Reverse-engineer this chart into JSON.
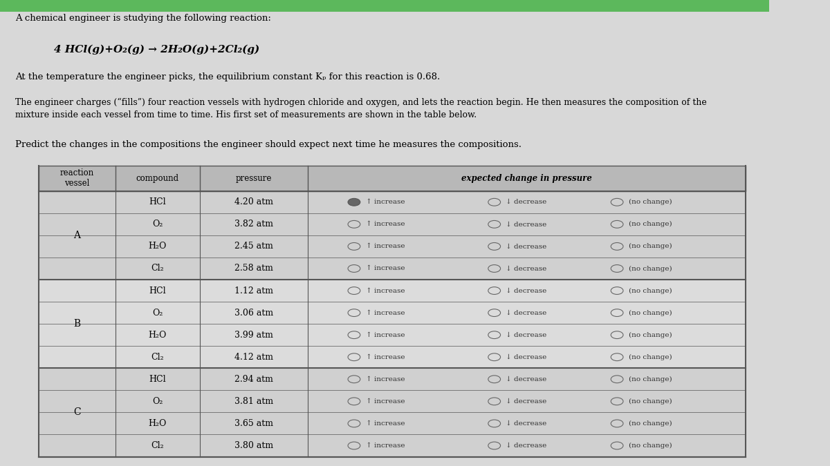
{
  "title_line1": "A chemical engineer is studying the following reaction:",
  "reaction": "4 HCl(g)+O₂(g) → 2H₂O(g)+2Cl₂(g)",
  "eq_line": "At the temperature the engineer picks, the equilibrium constant Kₚ for this reaction is 0.68.",
  "para1": "The engineer charges (“fills”) four reaction vessels with hydrogen chloride and oxygen, and lets the reaction begin. He then measures the composition of the\nmixture inside each vessel from time to time. His first set of measurements are shown in the table below.",
  "para2": "Predict the changes in the compositions the engineer should expect next time he measures the compositions.",
  "col_headers": [
    "reaction\nvessel",
    "compound",
    "pressure",
    "expected change in pressure"
  ],
  "vessels": [
    "A",
    "A",
    "A",
    "A",
    "B",
    "B",
    "B",
    "B",
    "C",
    "C",
    "C",
    "C"
  ],
  "compounds": [
    "HCl",
    "O₂",
    "H₂O",
    "Cl₂",
    "HCl",
    "O₂",
    "H₂O",
    "Cl₂",
    "HCl",
    "O₂",
    "H₂O",
    "Cl₂"
  ],
  "pressures": [
    "4.20 atm",
    "3.82 atm",
    "2.45 atm",
    "2.58 atm",
    "1.12 atm",
    "3.06 atm",
    "3.99 atm",
    "4.12 atm",
    "2.94 atm",
    "3.81 atm",
    "3.65 atm",
    "3.80 atm"
  ],
  "selected": [
    0,
    -1,
    -1,
    -1,
    -1,
    -1,
    -1,
    -1,
    -1,
    -1,
    -1,
    -1
  ],
  "bg_color": "#d8d8d8",
  "header_bg": "#b0b0b0",
  "cell_bg_light": "#e8e8e8",
  "cell_bg_white": "#f5f5f5",
  "table_border": "#555555",
  "green_top": "#5cb85c"
}
